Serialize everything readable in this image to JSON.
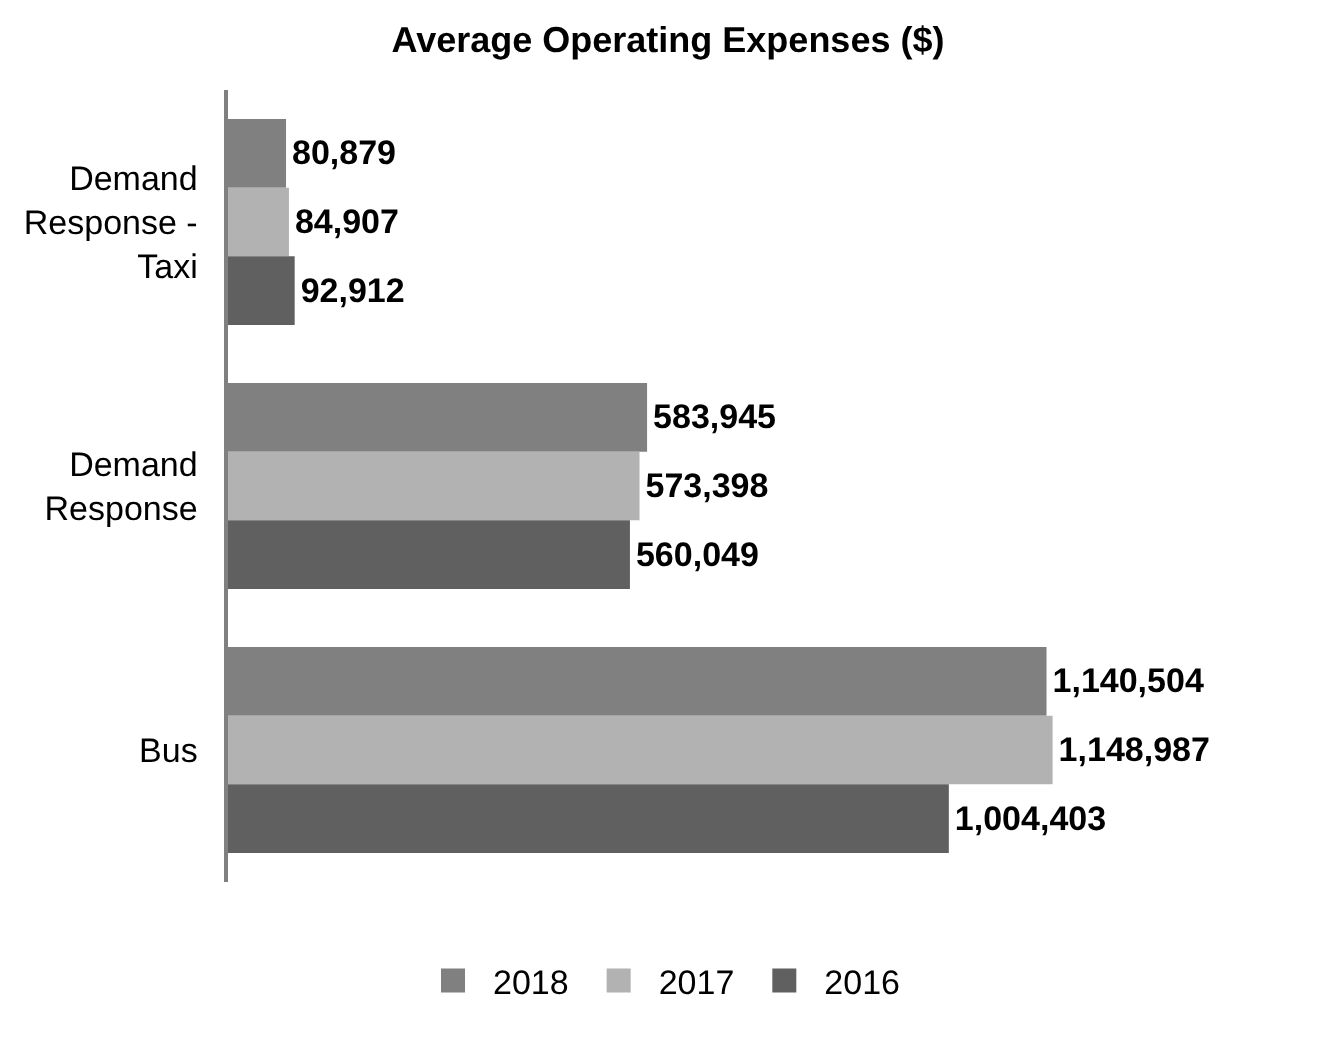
{
  "chart_data": {
    "type": "bar",
    "orientation": "horizontal",
    "title": "Average Operating Expenses ($)",
    "categories": [
      "Demand\nResponse -\nTaxi",
      "Demand\nResponse",
      "Bus"
    ],
    "series": [
      {
        "name": "2018",
        "color": "#808080",
        "values": [
          80879,
          583945,
          1140504
        ],
        "value_labels": [
          "80,879",
          "583,945",
          "1,140,504"
        ]
      },
      {
        "name": "2017",
        "color": "#b2b2b2",
        "values": [
          84907,
          573398,
          1148987
        ],
        "value_labels": [
          "84,907",
          "573,398",
          "1,148,987"
        ]
      },
      {
        "name": "2016",
        "color": "#606060",
        "values": [
          92912,
          560049,
          1004403
        ],
        "value_labels": [
          "92,912",
          "560,049",
          "1,004,403"
        ]
      }
    ],
    "legend": "bottom"
  }
}
